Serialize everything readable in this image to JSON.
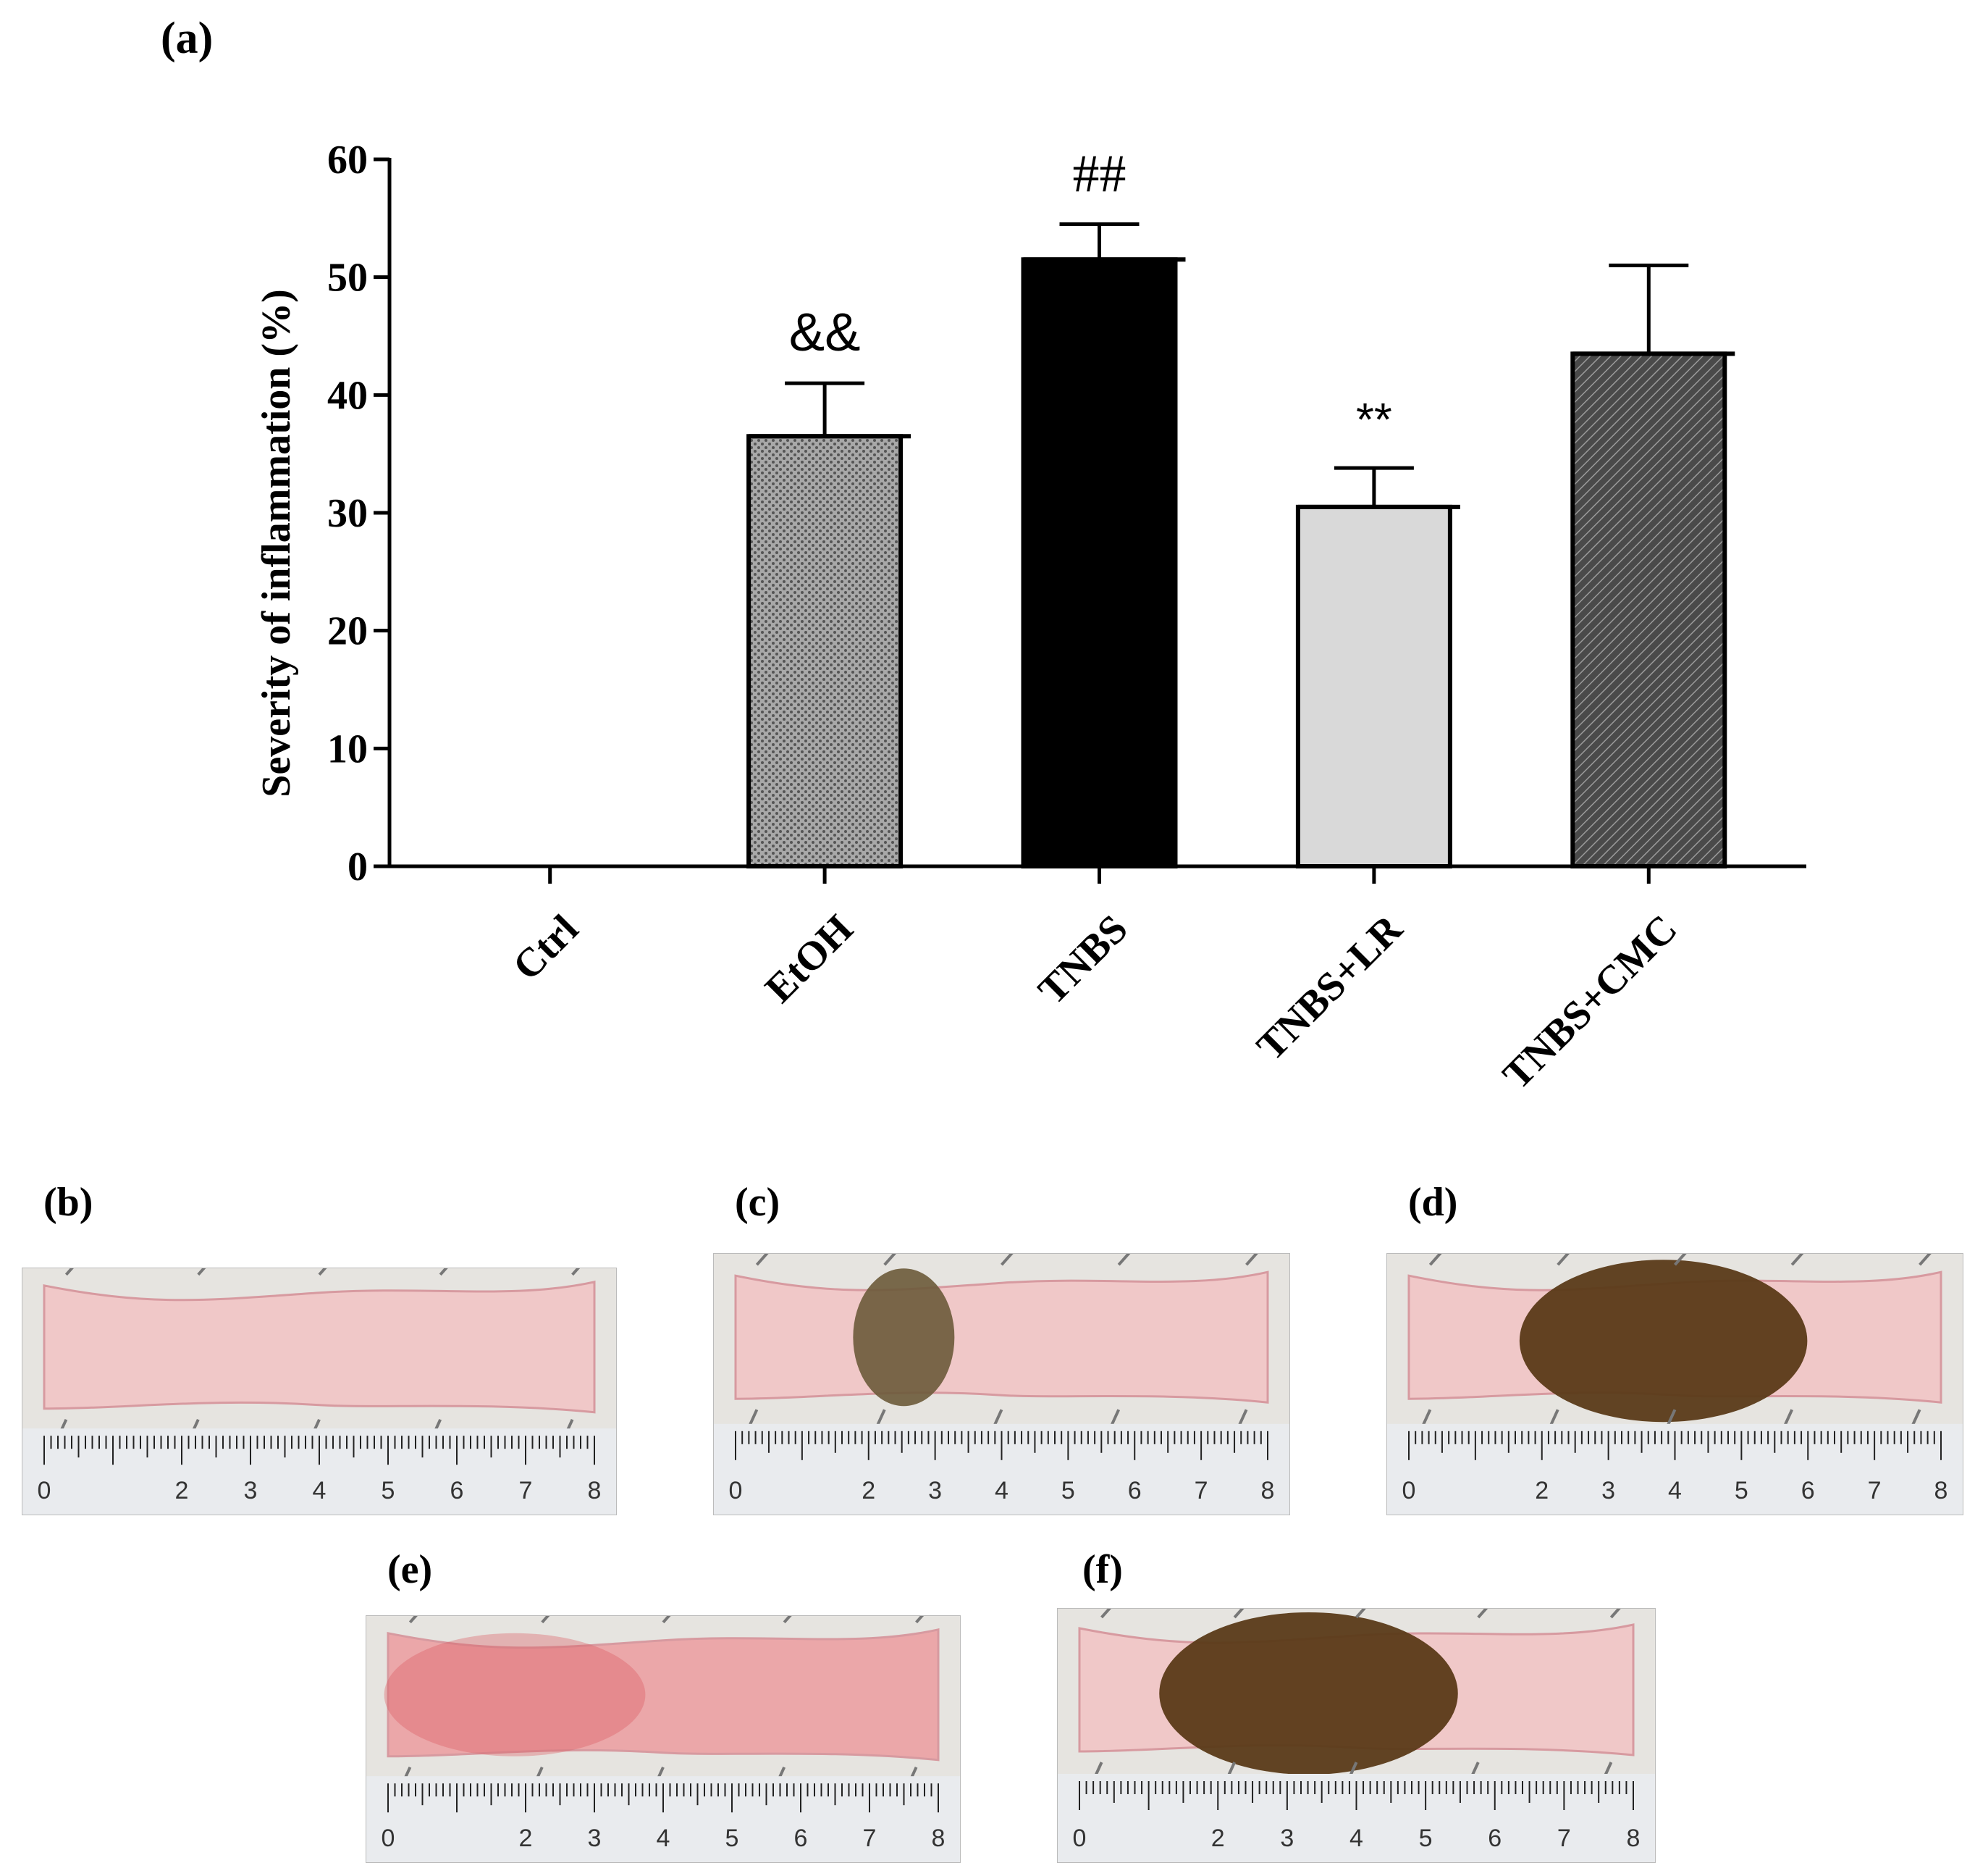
{
  "chart_data": {
    "type": "bar",
    "panel_label": "(a)",
    "title": "",
    "xlabel": "",
    "ylabel": "Severity of inflammation (%)",
    "ylim": [
      0,
      60
    ],
    "yticks": [
      0,
      10,
      20,
      30,
      40,
      50,
      60
    ],
    "categories": [
      "Ctrl",
      "EtOH",
      "TNBS",
      "TNBS+LR",
      "TNBS+CMC"
    ],
    "values": [
      0,
      36.5,
      51.5,
      30.5,
      43.5
    ],
    "errors": [
      0,
      4.5,
      3,
      3.3,
      7.5
    ],
    "annotations": [
      "",
      "&&",
      "##",
      "**",
      ""
    ],
    "bar_styles": [
      "none",
      "dotted-gray",
      "solid-black",
      "light-gray",
      "hatched-dark"
    ]
  },
  "photos": [
    {
      "label": "(b)",
      "tissue": "normal",
      "ruler_ticks": [
        "0",
        "2",
        "3",
        "4",
        "5",
        "6",
        "7",
        "8"
      ]
    },
    {
      "label": "(c)",
      "tissue": "small-lesion",
      "ruler_ticks": [
        "0",
        "2",
        "3",
        "4",
        "5",
        "6",
        "7",
        "8"
      ]
    },
    {
      "label": "(d)",
      "tissue": "large-lesion",
      "ruler_ticks": [
        "0",
        "2",
        "3",
        "4",
        "5",
        "6",
        "7",
        "8"
      ]
    },
    {
      "label": "(e)",
      "tissue": "reddened",
      "ruler_ticks": [
        "0",
        "2",
        "3",
        "4",
        "5",
        "6",
        "7",
        "8"
      ]
    },
    {
      "label": "(f)",
      "tissue": "large-lesion-2",
      "ruler_ticks": [
        "0",
        "2",
        "3",
        "4",
        "5",
        "6",
        "7",
        "8"
      ]
    }
  ],
  "colors": {
    "axis": "#000000",
    "bar_black": "#000000",
    "bar_light": "#d9d9d9",
    "tissue_pink": "#f0c8c8",
    "lesion_brown": "#5a3a18"
  }
}
